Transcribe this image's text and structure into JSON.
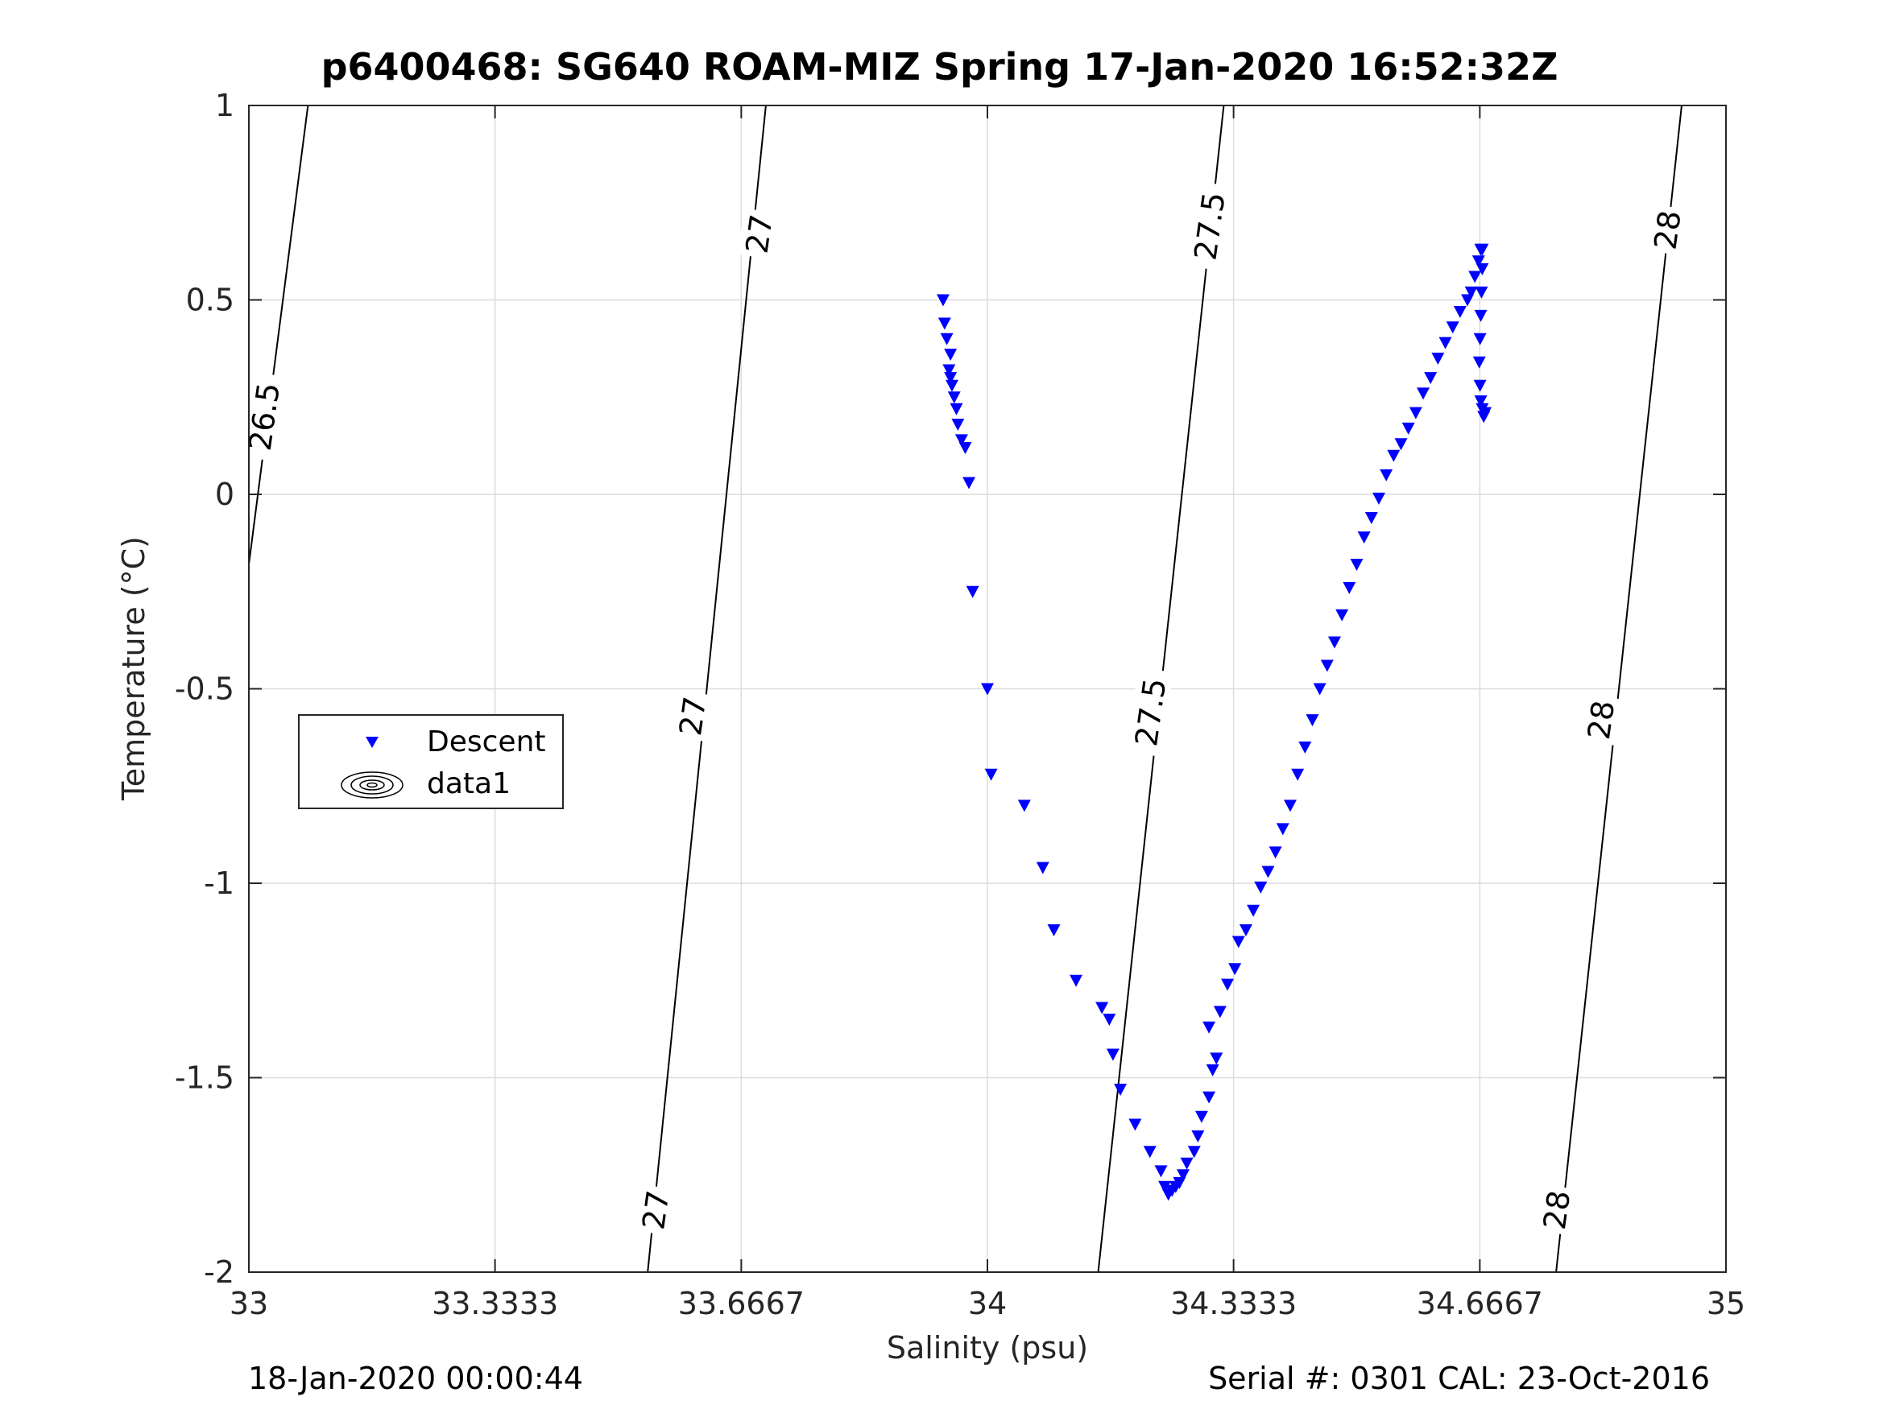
{
  "chart_data": {
    "type": "scatter",
    "title": "p6400468: SG640 ROAM-MIZ Spring 17-Jan-2020 16:52:32Z",
    "xlabel": "Salinity (psu)",
    "ylabel": "Temperature (°C)",
    "xlim": [
      33,
      35
    ],
    "ylim": [
      -2,
      1
    ],
    "xticks": [
      "33",
      "33.3333",
      "33.6667",
      "34",
      "34.3333",
      "34.6667",
      "35"
    ],
    "yticks": [
      "-2",
      "-1.5",
      "-1",
      "-0.5",
      "0",
      "0.5",
      "1"
    ],
    "grid": true,
    "legend_position": "middle-left",
    "legend": [
      "Descent",
      "data1"
    ],
    "series": [
      {
        "name": "Descent",
        "marker": "triangle-down",
        "color": "#0000ff",
        "x": [
          33.94,
          33.942,
          33.945,
          33.95,
          33.948,
          33.952,
          33.955,
          33.95,
          33.958,
          33.96,
          33.965,
          33.97,
          33.975,
          33.98,
          34.0,
          34.005,
          34.05,
          34.075,
          34.09,
          34.12,
          34.155,
          34.165,
          34.17,
          34.18,
          34.2,
          34.22,
          34.235,
          34.24,
          34.245,
          34.25,
          34.255,
          34.26,
          34.265,
          34.27,
          34.28,
          34.285,
          34.29,
          34.3,
          34.305,
          34.31,
          34.3,
          34.315,
          34.325,
          34.335,
          34.34,
          34.35,
          34.36,
          34.37,
          34.38,
          34.39,
          34.4,
          34.41,
          34.42,
          34.43,
          34.44,
          34.45,
          34.46,
          34.47,
          34.48,
          34.49,
          34.5,
          34.51,
          34.52,
          34.53,
          34.54,
          34.55,
          34.56,
          34.57,
          34.58,
          34.59,
          34.6,
          34.61,
          34.62,
          34.63,
          34.64,
          34.65,
          34.655,
          34.66,
          34.665,
          34.668,
          34.67,
          34.67,
          34.669,
          34.668,
          34.667,
          34.666,
          34.667,
          34.668,
          34.67,
          34.672,
          34.674
        ],
        "y": [
          0.5,
          0.44,
          0.4,
          0.36,
          0.32,
          0.28,
          0.25,
          0.3,
          0.22,
          0.18,
          0.14,
          0.12,
          0.03,
          -0.25,
          -0.5,
          -0.72,
          -0.8,
          -0.96,
          -1.12,
          -1.25,
          -1.32,
          -1.35,
          -1.44,
          -1.53,
          -1.62,
          -1.69,
          -1.74,
          -1.78,
          -1.8,
          -1.79,
          -1.78,
          -1.77,
          -1.75,
          -1.72,
          -1.69,
          -1.65,
          -1.6,
          -1.55,
          -1.48,
          -1.45,
          -1.37,
          -1.33,
          -1.26,
          -1.22,
          -1.15,
          -1.12,
          -1.07,
          -1.01,
          -0.97,
          -0.92,
          -0.86,
          -0.8,
          -0.72,
          -0.65,
          -0.58,
          -0.5,
          -0.44,
          -0.38,
          -0.31,
          -0.24,
          -0.18,
          -0.11,
          -0.06,
          -0.01,
          0.05,
          0.1,
          0.13,
          0.17,
          0.21,
          0.26,
          0.3,
          0.35,
          0.39,
          0.43,
          0.47,
          0.5,
          0.52,
          0.56,
          0.6,
          0.63,
          0.63,
          0.58,
          0.52,
          0.46,
          0.4,
          0.34,
          0.28,
          0.24,
          0.22,
          0.2,
          0.21
        ]
      }
    ],
    "contours": {
      "name": "data1",
      "labels": [
        "26.5",
        "27",
        "27.5",
        "28"
      ],
      "lines": [
        {
          "level": "26.5",
          "points": [
            [
              33.0,
              -0.18
            ],
            [
              33.08,
              1.0
            ]
          ]
        },
        {
          "level": "27",
          "points": [
            [
              33.54,
              -2.0
            ],
            [
              33.7,
              1.0
            ]
          ]
        },
        {
          "level": "27.5",
          "points": [
            [
              34.15,
              -2.0
            ],
            [
              34.32,
              1.0
            ]
          ]
        },
        {
          "level": "28",
          "points": [
            [
              34.77,
              -2.0
            ],
            [
              34.94,
              1.0
            ]
          ]
        }
      ],
      "label_positions": [
        {
          "text": "26.5",
          "x": 33.02,
          "y": 0.2
        },
        {
          "text": "27",
          "x": 33.69,
          "y": 0.67
        },
        {
          "text": "27",
          "x": 33.6,
          "y": -0.57
        },
        {
          "text": "27",
          "x": 33.55,
          "y": -1.84
        },
        {
          "text": "27.5",
          "x": 34.3,
          "y": 0.69
        },
        {
          "text": "27.5",
          "x": 34.22,
          "y": -0.56
        },
        {
          "text": "28",
          "x": 34.92,
          "y": 0.68
        },
        {
          "text": "28",
          "x": 34.83,
          "y": -0.58
        },
        {
          "text": "28",
          "x": 34.77,
          "y": -1.84
        }
      ]
    }
  },
  "footer": {
    "left": "18-Jan-2020 00:00:44",
    "right": "Serial #: 0301  CAL: 23-Oct-2016"
  }
}
